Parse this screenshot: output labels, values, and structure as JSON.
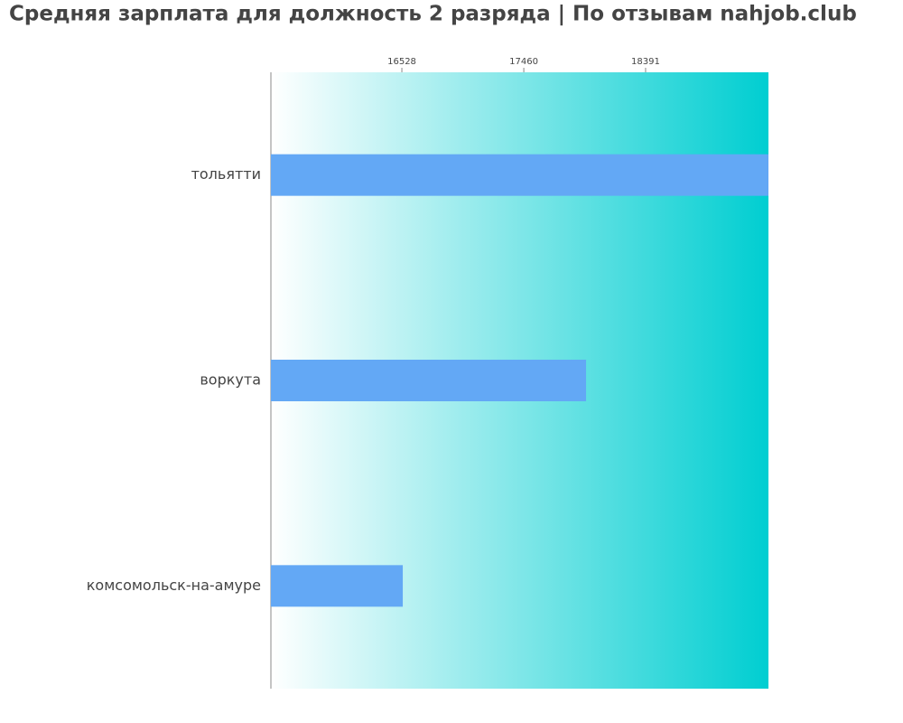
{
  "chart_data": {
    "type": "bar",
    "orientation": "horizontal",
    "title": "Средняя зарплата для должность 2 разряда | По отзывам nahjob.club",
    "categories": [
      "тольятти",
      "воркута",
      "комсомольск-на-амуре"
    ],
    "values": [
      19330,
      17936,
      16535
    ],
    "color": "#63a8f5",
    "xlim": [
      15527,
      19330
    ],
    "xticks": [
      16528,
      17460,
      18391
    ]
  }
}
